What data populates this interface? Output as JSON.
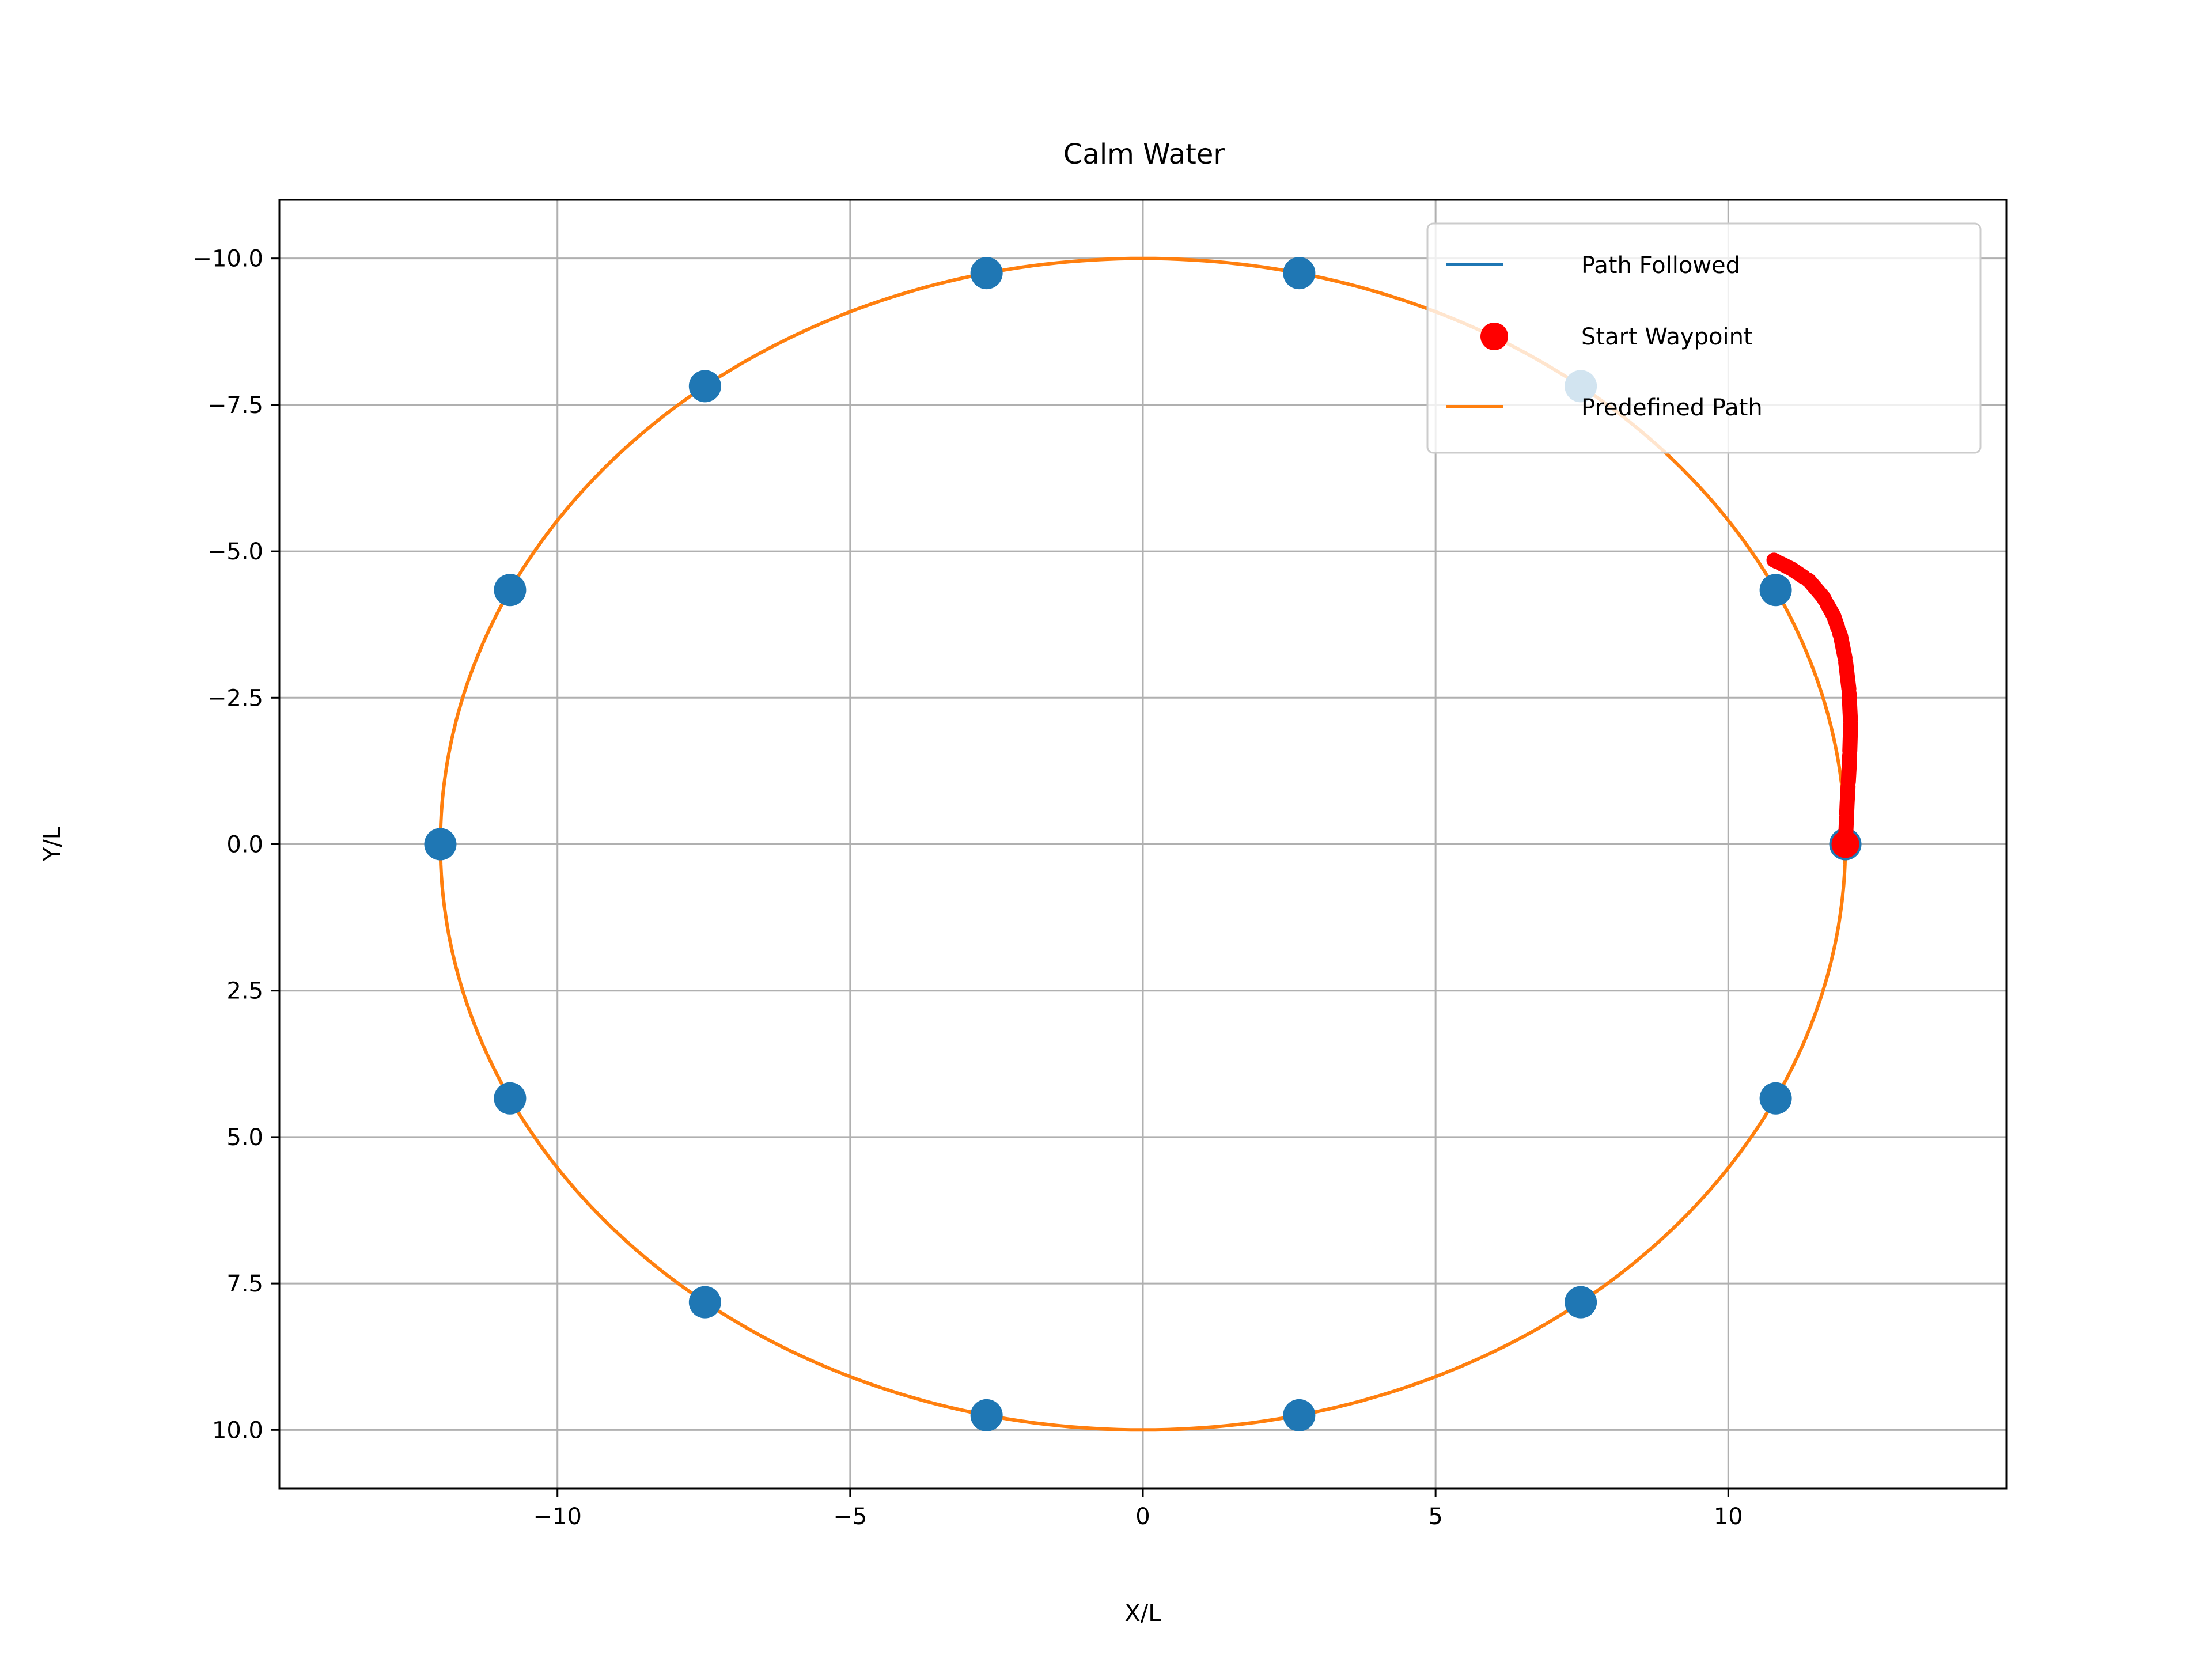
{
  "chart_data": {
    "type": "line",
    "title": "Calm Water",
    "xlabel": "X/L",
    "ylabel": "Y/L",
    "xlim": [
      -14.75,
      14.75
    ],
    "ylim": [
      -11,
      11
    ],
    "y_inverted": true,
    "grid": true,
    "legend_position": "top-right",
    "x_ticks": [
      -10,
      -5,
      0,
      5,
      10
    ],
    "x_tick_labels": [
      "−10",
      "−5",
      "0",
      "5",
      "10"
    ],
    "y_ticks": [
      -10,
      -7.5,
      -5,
      -2.5,
      0,
      2.5,
      5,
      7.5,
      10
    ],
    "y_tick_labels": [
      "−10.0",
      "−7.5",
      "−5.0",
      "−2.5",
      "0.0",
      "2.5",
      "5.0",
      "7.5",
      "10.0"
    ],
    "series": [
      {
        "name": "Path Followed",
        "kind": "line",
        "color": "#1f77b4",
        "x": [
          12.0,
          12.02,
          12.06,
          12.08,
          12.04,
          11.98,
          11.9,
          11.78,
          11.6,
          11.35,
          11.05,
          10.75
        ],
        "y": [
          0.0,
          -0.6,
          -1.3,
          -2.0,
          -2.6,
          -3.1,
          -3.5,
          -3.85,
          -4.2,
          -4.5,
          -4.7,
          -4.85
        ]
      },
      {
        "name": "Start Waypoint",
        "kind": "point",
        "color": "#ff0000",
        "x": [
          12.0
        ],
        "y": [
          0.0
        ]
      },
      {
        "name": "Predefined Path",
        "kind": "ellipse",
        "color": "#ff7f0e",
        "center": [
          0,
          0
        ],
        "semi_axis_x": 12,
        "semi_axis_y": 10
      },
      {
        "name": "",
        "kind": "scatter",
        "color": "#1f77b4",
        "x": [
          12.0,
          10.81,
          7.48,
          2.67,
          -2.67,
          -7.48,
          -10.81,
          -12.0,
          -10.81,
          -7.48,
          -2.67,
          2.67,
          7.48,
          10.81
        ],
        "y": [
          0.0,
          4.34,
          7.82,
          9.75,
          9.75,
          7.82,
          4.34,
          0.0,
          -4.34,
          -7.82,
          -9.75,
          -9.75,
          -7.82,
          -4.34
        ]
      }
    ],
    "tracking_overlay": {
      "color": "#ff0000",
      "x": [
        12.0,
        12.03,
        12.07,
        12.09,
        12.06,
        12.0,
        11.92,
        11.8,
        11.62,
        11.38,
        11.08,
        10.78
      ],
      "y": [
        0.0,
        -0.7,
        -1.4,
        -2.05,
        -2.65,
        -3.15,
        -3.55,
        -3.9,
        -4.22,
        -4.5,
        -4.7,
        -4.85
      ]
    },
    "legend": [
      "Path Followed",
      "Start Waypoint",
      "Predefined Path"
    ]
  }
}
